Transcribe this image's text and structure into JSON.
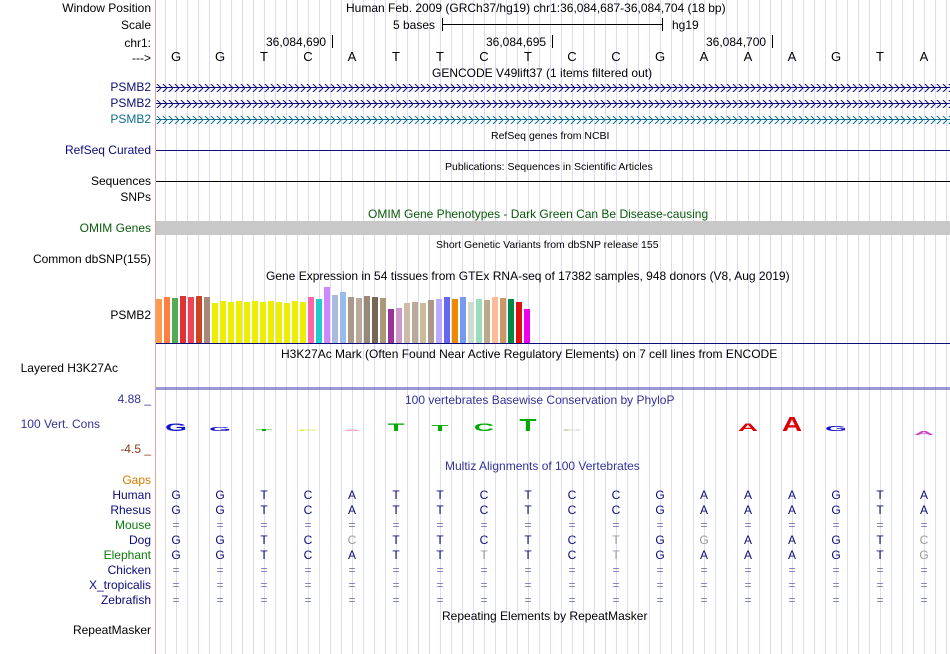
{
  "colors": {
    "navy": "#0b0b7a",
    "gencode": "#0b0b7a",
    "gencode3": "#0c6d8e",
    "omim": "#0a5a0a",
    "cons": "#333399",
    "gaps": "#d47b00",
    "species_green": "#0a7a0a",
    "grey": "#9a9a9a",
    "red": "#cc2222"
  },
  "header": {
    "window_position_label": "Window Position",
    "window_position_value": "Human Feb. 2009 (GRCh37/hg19)   chr1:36,084,687-36,084,704 (18 bp)",
    "scale_label": "Scale",
    "scale_text": "5 bases",
    "scale_assembly": "hg19",
    "chrom_label": "chr1:",
    "chrom_ticks": [
      "36,084,690",
      "36,084,695",
      "36,084,700"
    ],
    "strand_label": "--->"
  },
  "sequence": [
    "G",
    "G",
    "T",
    "C",
    "A",
    "T",
    "T",
    "C",
    "T",
    "C",
    "C",
    "G",
    "A",
    "A",
    "A",
    "G",
    "T",
    "A"
  ],
  "gencode": {
    "title": "GENCODE V49lift37 (1 items filtered out)",
    "tracks": [
      "PSMB2",
      "PSMB2",
      "PSMB2"
    ]
  },
  "refseq": {
    "title": "RefSeq genes from NCBI",
    "label": "RefSeq Curated"
  },
  "publications": {
    "title": "Publications: Sequences in Scientific Articles",
    "label": "Sequences"
  },
  "snps_label": "SNPs",
  "omim": {
    "title": "OMIM Gene Phenotypes - Dark Green Can Be Disease-causing",
    "label": "OMIM Genes"
  },
  "dbsnp": {
    "title": "Short Genetic Variants from dbSNP release 155",
    "label": "Common dbSNP(155)"
  },
  "gtex": {
    "title": "Gene Expression in 54 tissues from GTEx RNA-seq of 17382 samples, 948 donors (V8, Aug 2019)",
    "label": "PSMB2",
    "bars": [
      {
        "h": 44,
        "c": "#ff9b4f"
      },
      {
        "h": 46,
        "c": "#ff7f3f"
      },
      {
        "h": 45,
        "c": "#55aa55"
      },
      {
        "h": 47,
        "c": "#dd3333"
      },
      {
        "h": 46,
        "c": "#ee4455"
      },
      {
        "h": 47,
        "c": "#cc4422"
      },
      {
        "h": 46,
        "c": "#aa8877"
      },
      {
        "h": 40,
        "c": "#eeee00"
      },
      {
        "h": 42,
        "c": "#eeee00"
      },
      {
        "h": 41,
        "c": "#eeee00"
      },
      {
        "h": 42,
        "c": "#eeee00"
      },
      {
        "h": 41,
        "c": "#eeee00"
      },
      {
        "h": 42,
        "c": "#eeee00"
      },
      {
        "h": 41,
        "c": "#eeee00"
      },
      {
        "h": 42,
        "c": "#eeee00"
      },
      {
        "h": 41,
        "c": "#eeee00"
      },
      {
        "h": 40,
        "c": "#eeee00"
      },
      {
        "h": 42,
        "c": "#eeee00"
      },
      {
        "h": 41,
        "c": "#eeee00"
      },
      {
        "h": 46,
        "c": "#ff66aa"
      },
      {
        "h": 44,
        "c": "#22cccc"
      },
      {
        "h": 56,
        "c": "#cc88ff"
      },
      {
        "h": 48,
        "c": "#aabbdd"
      },
      {
        "h": 51,
        "c": "#99bbee"
      },
      {
        "h": 46,
        "c": "#aa9988"
      },
      {
        "h": 45,
        "c": "#bbaa99"
      },
      {
        "h": 47,
        "c": "#998877"
      },
      {
        "h": 46,
        "c": "#776655"
      },
      {
        "h": 45,
        "c": "#aa9977"
      },
      {
        "h": 34,
        "c": "#993399"
      },
      {
        "h": 35,
        "c": "#cc99cc"
      },
      {
        "h": 40,
        "c": "#ccbbaa"
      },
      {
        "h": 41,
        "c": "#bbaa99"
      },
      {
        "h": 40,
        "c": "#ccbb99"
      },
      {
        "h": 43,
        "c": "#aa9988"
      },
      {
        "h": 44,
        "c": "#bbaaff"
      },
      {
        "h": 46,
        "c": "#6666ee"
      },
      {
        "h": 44,
        "c": "#ee8800"
      },
      {
        "h": 46,
        "c": "#7799ee"
      },
      {
        "h": 41,
        "c": "#ccddcc"
      },
      {
        "h": 44,
        "c": "#99ddbb"
      },
      {
        "h": 43,
        "c": "#bbaa88"
      },
      {
        "h": 46,
        "c": "#ffbb99"
      },
      {
        "h": 45,
        "c": "#cc9966"
      },
      {
        "h": 44,
        "c": "#008844"
      },
      {
        "h": 41,
        "c": "#dd1111"
      },
      {
        "h": 34,
        "c": "#ee00ee"
      }
    ]
  },
  "h3k27ac": {
    "title": "H3K27Ac Mark (Often Found Near Active Regulatory Elements) on 7 cell lines from ENCODE",
    "label": "Layered H3K27Ac"
  },
  "phylop": {
    "title": "100 vertebrates Basewise Conservation by PhyloP",
    "label": "100 Vert. Cons",
    "max": "4.88 _",
    "min": "-4.5 _",
    "logo": [
      {
        "b": "G",
        "h": 8,
        "neg": false,
        "c": "#1111cc"
      },
      {
        "b": "G",
        "h": 4,
        "neg": false,
        "c": "#1111cc"
      },
      {
        "b": "T",
        "h": 2,
        "neg": false,
        "c": "#00aa00"
      },
      {
        "b": "C",
        "h": 1,
        "neg": false,
        "c": "#dddd00"
      },
      {
        "b": "A",
        "h": 1,
        "neg": false,
        "c": "#ff99bb"
      },
      {
        "b": "T",
        "h": 8,
        "neg": false,
        "c": "#00aa00"
      },
      {
        "b": "T",
        "h": 6,
        "neg": false,
        "c": "#00aa00"
      },
      {
        "b": "C",
        "h": 8,
        "neg": false,
        "c": "#00aa00"
      },
      {
        "b": "T",
        "h": 12,
        "neg": false,
        "c": "#00aa00"
      },
      {
        "b": "C",
        "h": 2,
        "neg": false,
        "c": "#ccccaa"
      },
      {
        "b": "C",
        "h": 0,
        "neg": false,
        "c": "#ffffff"
      },
      {
        "b": "G",
        "h": 0,
        "neg": false,
        "c": "#ffffff"
      },
      {
        "b": "A",
        "h": 0,
        "neg": false,
        "c": "#ffffff"
      },
      {
        "b": "A",
        "h": 8,
        "neg": false,
        "c": "#dd0000"
      },
      {
        "b": "A",
        "h": 14,
        "neg": false,
        "c": "#dd0000"
      },
      {
        "b": "G",
        "h": 5,
        "neg": false,
        "c": "#1111cc"
      },
      {
        "b": "T",
        "h": 0,
        "neg": false,
        "c": "#ffffff"
      },
      {
        "b": "A",
        "h": 4,
        "neg": true,
        "c": "#cc44cc"
      }
    ]
  },
  "multiz": {
    "title": "Multiz Alignments of 100 Vertebrates",
    "gaps_label": "Gaps",
    "species": [
      {
        "name": "Human",
        "bases": [
          "G",
          "G",
          "T",
          "C",
          "A",
          "T",
          "T",
          "C",
          "T",
          "C",
          "C",
          "G",
          "A",
          "A",
          "A",
          "G",
          "T",
          "A"
        ],
        "grey": []
      },
      {
        "name": "Rhesus",
        "bases": [
          "G",
          "G",
          "T",
          "C",
          "A",
          "T",
          "T",
          "C",
          "T",
          "C",
          "C",
          "G",
          "A",
          "A",
          "A",
          "G",
          "T",
          "A"
        ],
        "grey": []
      },
      {
        "name": "Mouse",
        "bases": [
          "=",
          "=",
          "=",
          "=",
          "=",
          "=",
          "=",
          "=",
          "=",
          "=",
          "=",
          "=",
          "=",
          "=",
          "=",
          "=",
          "=",
          "="
        ],
        "grey": []
      },
      {
        "name": "Dog",
        "bases": [
          "G",
          "G",
          "T",
          "C",
          "C",
          "T",
          "T",
          "C",
          "T",
          "C",
          "T",
          "G",
          "G",
          "A",
          "A",
          "G",
          "T",
          "C"
        ],
        "grey": [
          4,
          10,
          12,
          17
        ]
      },
      {
        "name": "Elephant",
        "bases": [
          "G",
          "G",
          "T",
          "C",
          "A",
          "T",
          "T",
          "T",
          "T",
          "C",
          "T",
          "G",
          "A",
          "A",
          "A",
          "G",
          "T",
          "G"
        ],
        "grey": [
          7,
          10,
          17
        ]
      },
      {
        "name": "Chicken",
        "bases": [
          "=",
          "=",
          "=",
          "=",
          "=",
          "=",
          "=",
          "=",
          "=",
          "=",
          "=",
          "=",
          "=",
          "=",
          "=",
          "=",
          "=",
          "="
        ],
        "grey": []
      },
      {
        "name": "X_tropicalis",
        "bases": [
          "=",
          "=",
          "=",
          "=",
          "=",
          "=",
          "=",
          "=",
          "=",
          "=",
          "=",
          "=",
          "=",
          "=",
          "=",
          "=",
          "=",
          "="
        ],
        "grey": []
      },
      {
        "name": "Zebrafish",
        "bases": [
          "=",
          "=",
          "=",
          "=",
          "=",
          "=",
          "=",
          "=",
          "=",
          "=",
          "=",
          "=",
          "=",
          "=",
          "=",
          "=",
          "=",
          "="
        ],
        "grey": []
      }
    ]
  },
  "repeatmasker": {
    "title": "Repeating Elements by RepeatMasker",
    "label": "RepeatMasker"
  }
}
